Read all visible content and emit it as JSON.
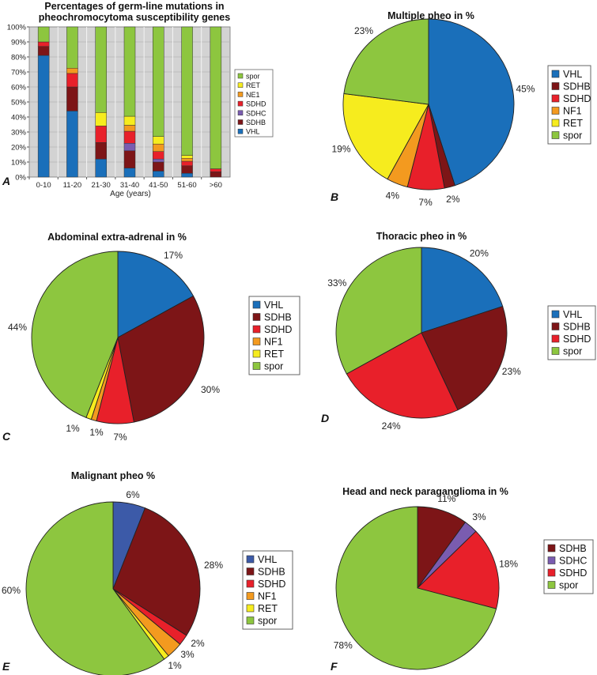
{
  "colors": {
    "VHL": "#1a6fba",
    "SDHB": "#7d1517",
    "SDHC": "#7a5cb0",
    "SDHD": "#e8202a",
    "NF1": "#f39a1f",
    "NE1": "#f39a1f",
    "RET": "#f6ec1e",
    "spor": "#8dc63f",
    "VHL_E": "#3c5aa8"
  },
  "chart_data": [
    {
      "panel": "A",
      "type": "bar",
      "stacked": true,
      "title": [
        "Percentages of germ-line mutations in",
        "pheochromocytoma susceptibility genes"
      ],
      "xlabel": "Age (years)",
      "ylabel": "",
      "ylim": [
        0,
        100
      ],
      "yticks": [
        "0%",
        "10%",
        "20%",
        "30%",
        "40%",
        "50%",
        "60%",
        "70%",
        "80%",
        "90%",
        "100%"
      ],
      "grid": true,
      "legend_position": "right",
      "categories": [
        "0-10",
        "11-20",
        "21-30",
        "31-40",
        "41-50",
        "51-60",
        ">60"
      ],
      "series": [
        {
          "name": "VHL",
          "values": [
            81,
            44,
            12,
            6,
            4,
            2.5,
            0
          ]
        },
        {
          "name": "SDHB",
          "values": [
            6,
            16,
            11,
            11.5,
            6,
            5,
            3.5
          ]
        },
        {
          "name": "SDHC",
          "values": [
            0,
            0,
            0,
            5,
            2,
            0,
            0
          ]
        },
        {
          "name": "SDHD",
          "values": [
            3,
            9,
            11,
            8,
            5,
            3,
            2
          ]
        },
        {
          "name": "NE1",
          "values": [
            0,
            3.5,
            0,
            4,
            5,
            2,
            0
          ]
        },
        {
          "name": "RET",
          "values": [
            0,
            0,
            9,
            6,
            5,
            2,
            0
          ]
        },
        {
          "name": "spor",
          "values": [
            10,
            27.5,
            57,
            59.5,
            73,
            85.5,
            94.5
          ]
        }
      ],
      "legend": [
        "spor",
        "RET",
        "NE1",
        "SDHD",
        "SDHC",
        "SDHB",
        "VHL"
      ]
    },
    {
      "panel": "B",
      "type": "pie",
      "title": "Multiple pheo in %",
      "legend_position": "right",
      "slices": [
        {
          "name": "VHL",
          "value": 45,
          "label": "45%"
        },
        {
          "name": "SDHB",
          "value": 2,
          "label": "2%"
        },
        {
          "name": "SDHD",
          "value": 7,
          "label": "7%"
        },
        {
          "name": "NF1",
          "value": 4,
          "label": "4%"
        },
        {
          "name": "RET",
          "value": 19,
          "label": "19%"
        },
        {
          "name": "spor",
          "value": 23,
          "label": "23%"
        }
      ]
    },
    {
      "panel": "C",
      "type": "pie",
      "title": "Abdominal extra-adrenal in %",
      "legend_position": "right",
      "slices": [
        {
          "name": "VHL",
          "value": 17,
          "label": "17%"
        },
        {
          "name": "SDHB",
          "value": 30,
          "label": "30%"
        },
        {
          "name": "SDHD",
          "value": 7,
          "label": "7%"
        },
        {
          "name": "NF1",
          "value": 1,
          "label": "1%"
        },
        {
          "name": "RET",
          "value": 1,
          "label": "1%"
        },
        {
          "name": "spor",
          "value": 44,
          "label": "44%"
        }
      ]
    },
    {
      "panel": "D",
      "type": "pie",
      "title": "Thoracic pheo in %",
      "legend_position": "right",
      "slices": [
        {
          "name": "VHL",
          "value": 20,
          "label": "20%"
        },
        {
          "name": "SDHB",
          "value": 23,
          "label": "23%"
        },
        {
          "name": "SDHD",
          "value": 24,
          "label": "24%"
        },
        {
          "name": "spor",
          "value": 33,
          "label": "33%"
        }
      ]
    },
    {
      "panel": "E",
      "type": "pie",
      "title": "Malignant pheo %",
      "legend_position": "right",
      "slices": [
        {
          "name": "VHL",
          "value": 6,
          "label": "6%"
        },
        {
          "name": "SDHB",
          "value": 28,
          "label": "28%"
        },
        {
          "name": "SDHD",
          "value": 2,
          "label": "2%"
        },
        {
          "name": "NF1",
          "value": 3,
          "label": "3%"
        },
        {
          "name": "RET",
          "value": 1,
          "label": "1%"
        },
        {
          "name": "spor",
          "value": 60,
          "label": "60%"
        }
      ]
    },
    {
      "panel": "F",
      "type": "pie",
      "title": "Head and neck paraganglioma in %",
      "legend_position": "right",
      "slices": [
        {
          "name": "SDHB",
          "value": 11,
          "label": "11%"
        },
        {
          "name": "SDHC",
          "value": 3,
          "label": "3%"
        },
        {
          "name": "SDHD",
          "value": 18,
          "label": "18%"
        },
        {
          "name": "spor",
          "value": 78,
          "label": "78%"
        }
      ]
    }
  ]
}
